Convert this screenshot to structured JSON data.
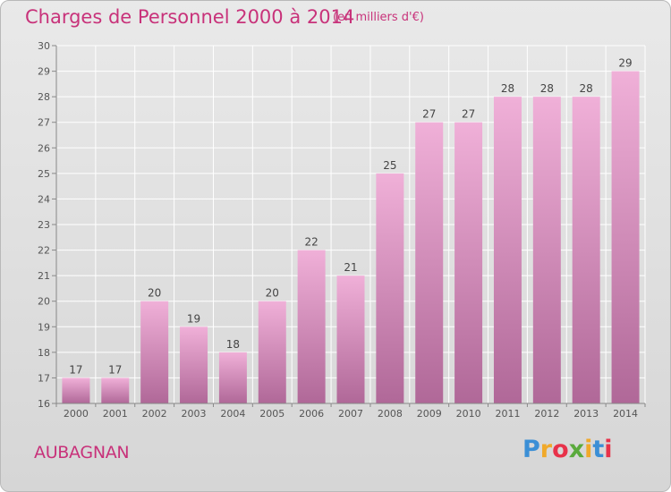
{
  "header": {
    "title": "Charges de Personnel 2000 à 2014",
    "subtitle": "(en milliers d'€)"
  },
  "footer": {
    "city": "AUBAGNAN",
    "logo_letters": [
      "P",
      "r",
      "o",
      "x",
      "i",
      "t",
      "i"
    ],
    "logo_colors": [
      "#3b8fd6",
      "#f0a92a",
      "#e8324a",
      "#5aaa3c",
      "#f0a92a",
      "#3b8fd6",
      "#e8324a"
    ]
  },
  "colors": {
    "bar_top": "#f0b0d8",
    "bar_bottom": "#b06898",
    "text": "#c8327a",
    "axis": "#555555"
  },
  "chart_data": {
    "type": "bar",
    "title": "Charges de Personnel 2000 à 2014",
    "subtitle": "(en milliers d'€)",
    "xlabel": "",
    "ylabel": "",
    "categories": [
      "2000",
      "2001",
      "2002",
      "2003",
      "2004",
      "2005",
      "2006",
      "2007",
      "2008",
      "2009",
      "2010",
      "2011",
      "2012",
      "2013",
      "2014"
    ],
    "values": [
      17,
      17,
      20,
      19,
      18,
      20,
      22,
      21,
      25,
      27,
      27,
      28,
      28,
      28,
      29
    ],
    "ylim": [
      16,
      30
    ],
    "yticks": [
      16,
      17,
      18,
      19,
      20,
      21,
      22,
      23,
      24,
      25,
      26,
      27,
      28,
      29,
      30
    ],
    "grid": true,
    "legend": "none"
  }
}
